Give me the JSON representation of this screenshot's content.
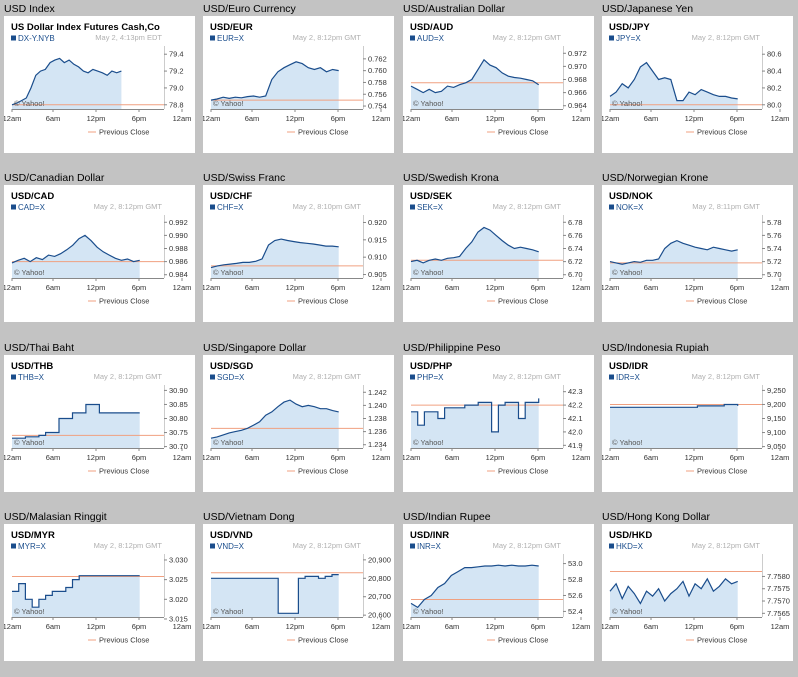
{
  "chart_data": [
    {
      "title": "USD Index",
      "heading": "US Dollar Index Futures Cash,Co",
      "symbol": "DX-Y.NYB",
      "time": "May 2, 4:13pm EDT",
      "ylim": [
        78.75,
        79.45
      ],
      "ticks": [
        "79.4",
        "79.2",
        "79.0",
        "78.8"
      ],
      "tickvals": [
        79.4,
        79.2,
        79.0,
        78.8
      ],
      "prev": 78.8,
      "end": 0.72,
      "values": [
        78.8,
        78.82,
        78.85,
        78.88,
        79.0,
        79.15,
        79.2,
        79.22,
        79.3,
        79.33,
        79.35,
        79.3,
        79.33,
        79.28,
        79.25,
        79.2,
        79.18,
        79.22,
        79.2,
        79.18,
        79.15,
        79.2,
        79.18,
        79.2
      ]
    },
    {
      "title": "USD/Euro Currency",
      "heading": "USD/EUR",
      "symbol": "EUR=X",
      "time": "May 2, 8:12pm GMT",
      "ylim": [
        0.7535,
        0.7635
      ],
      "ticks": [
        "0.762",
        "0.760",
        "0.758",
        "0.756",
        "0.754"
      ],
      "tickvals": [
        0.762,
        0.76,
        0.758,
        0.756,
        0.754
      ],
      "prev": 0.755,
      "end": 0.84,
      "values": [
        0.755,
        0.7552,
        0.7555,
        0.7553,
        0.7555,
        0.7554,
        0.7556,
        0.7557,
        0.7555,
        0.7557,
        0.7585,
        0.7598,
        0.7605,
        0.761,
        0.7615,
        0.7612,
        0.7605,
        0.7602,
        0.7605,
        0.7598,
        0.7602,
        0.76
      ]
    },
    {
      "title": "USD/Australian Dollar",
      "heading": "USD/AUD",
      "symbol": "AUD=X",
      "time": "May 2, 8:12pm GMT",
      "ylim": [
        0.9635,
        0.9725
      ],
      "ticks": [
        "0.972",
        "0.970",
        "0.968",
        "0.966",
        "0.964"
      ],
      "tickvals": [
        0.972,
        0.97,
        0.968,
        0.966,
        0.964
      ],
      "prev": 0.9675,
      "end": 0.84,
      "values": [
        0.967,
        0.9665,
        0.966,
        0.9665,
        0.966,
        0.9662,
        0.967,
        0.9668,
        0.9672,
        0.9675,
        0.968,
        0.9695,
        0.971,
        0.9702,
        0.9698,
        0.969,
        0.9685,
        0.9683,
        0.9682,
        0.968,
        0.9678,
        0.9672
      ]
    },
    {
      "title": "USD/Japanese Yen",
      "heading": "USD/JPY",
      "symbol": "JPY=X",
      "time": "May 2, 8:12pm GMT",
      "ylim": [
        79.95,
        80.65
      ],
      "ticks": [
        "80.6",
        "80.4",
        "80.2",
        "80.0"
      ],
      "tickvals": [
        80.6,
        80.4,
        80.2,
        80.0
      ],
      "prev": 80.0,
      "end": 0.84,
      "values": [
        80.1,
        80.15,
        80.25,
        80.2,
        80.3,
        80.45,
        80.5,
        80.4,
        80.3,
        80.32,
        80.3,
        80.05,
        80.05,
        80.15,
        80.12,
        80.18,
        80.15,
        80.12,
        80.1,
        80.1,
        80.08,
        80.07
      ]
    },
    {
      "title": "USD/Canadian Dollar",
      "heading": "USD/CAD",
      "symbol": "CAD=X",
      "time": "May 2, 8:12pm GMT",
      "ylim": [
        0.9835,
        0.9925
      ],
      "ticks": [
        "0.992",
        "0.990",
        "0.988",
        "0.986",
        "0.984"
      ],
      "tickvals": [
        0.992,
        0.99,
        0.988,
        0.986,
        0.984
      ],
      "prev": 0.986,
      "end": 0.84,
      "values": [
        0.9858,
        0.9862,
        0.9865,
        0.986,
        0.9866,
        0.9863,
        0.987,
        0.9868,
        0.9872,
        0.9878,
        0.9885,
        0.9895,
        0.99,
        0.9892,
        0.9882,
        0.9875,
        0.987,
        0.9865,
        0.9862,
        0.9864,
        0.986,
        0.9862
      ]
    },
    {
      "title": "USD/Swiss Franc",
      "heading": "USD/CHF",
      "symbol": "CHF=X",
      "time": "May 2, 8:10pm GMT",
      "ylim": [
        0.904,
        0.921
      ],
      "ticks": [
        "0.920",
        "0.915",
        "0.910",
        "0.905"
      ],
      "tickvals": [
        0.92,
        0.915,
        0.91,
        0.905
      ],
      "prev": 0.9075,
      "end": 0.84,
      "values": [
        0.907,
        0.9075,
        0.9078,
        0.908,
        0.9082,
        0.9085,
        0.9085,
        0.9088,
        0.9095,
        0.9135,
        0.9148,
        0.9152,
        0.9148,
        0.9145,
        0.9142,
        0.914,
        0.9138,
        0.9135,
        0.9132,
        0.9132,
        0.913
      ]
    },
    {
      "title": "USD/Swedish Krona",
      "heading": "USD/SEK",
      "symbol": "SEK=X",
      "time": "May 2, 8:12pm GMT",
      "ylim": [
        6.695,
        6.785
      ],
      "ticks": [
        "6.78",
        "6.76",
        "6.74",
        "6.72",
        "6.70"
      ],
      "tickvals": [
        6.78,
        6.76,
        6.74,
        6.72,
        6.7
      ],
      "prev": 6.722,
      "end": 0.84,
      "values": [
        6.72,
        6.722,
        6.718,
        6.722,
        6.724,
        6.722,
        6.725,
        6.726,
        6.728,
        6.74,
        6.75,
        6.765,
        6.772,
        6.768,
        6.76,
        6.752,
        6.745,
        6.74,
        6.742,
        6.74,
        6.738,
        6.735
      ]
    },
    {
      "title": "USD/Norwegian Krone",
      "heading": "USD/NOK",
      "symbol": "NOK=X",
      "time": "May 2, 8:11pm GMT",
      "ylim": [
        5.695,
        5.785
      ],
      "ticks": [
        "5.78",
        "5.76",
        "5.74",
        "5.72",
        "5.70"
      ],
      "tickvals": [
        5.78,
        5.76,
        5.74,
        5.72,
        5.7
      ],
      "prev": 5.718,
      "end": 0.84,
      "values": [
        5.72,
        5.718,
        5.716,
        5.718,
        5.72,
        5.719,
        5.722,
        5.722,
        5.724,
        5.74,
        5.748,
        5.752,
        5.748,
        5.745,
        5.742,
        5.74,
        5.738,
        5.742,
        5.74,
        5.738,
        5.736,
        5.738
      ]
    },
    {
      "title": "USD/Thai Baht",
      "heading": "USD/THB",
      "symbol": "THB=X",
      "time": "May 2, 8:12pm GMT",
      "ylim": [
        30.695,
        30.905
      ],
      "ticks": [
        "30.90",
        "30.85",
        "30.80",
        "30.75",
        "30.70"
      ],
      "tickvals": [
        30.9,
        30.85,
        30.8,
        30.75,
        30.7
      ],
      "prev": 30.74,
      "end": 0.84,
      "step": true,
      "values": [
        30.73,
        30.73,
        30.735,
        30.735,
        30.74,
        30.75,
        30.75,
        30.8,
        30.8,
        30.82,
        30.82,
        30.85,
        30.85,
        30.82,
        30.82,
        30.82,
        30.82,
        30.82,
        30.82,
        30.82
      ]
    },
    {
      "title": "USD/Singapore Dollar",
      "heading": "USD/SGD",
      "symbol": "SGD=X",
      "time": "May 2, 8:12pm GMT",
      "ylim": [
        1.2335,
        1.2425
      ],
      "ticks": [
        "1.242",
        "1.240",
        "1.238",
        "1.236",
        "1.234"
      ],
      "tickvals": [
        1.242,
        1.24,
        1.238,
        1.236,
        1.234
      ],
      "prev": 1.2365,
      "end": 0.84,
      "values": [
        1.235,
        1.2352,
        1.2355,
        1.2358,
        1.236,
        1.2362,
        1.2365,
        1.237,
        1.2375,
        1.2385,
        1.239,
        1.2398,
        1.2405,
        1.2408,
        1.2402,
        1.2398,
        1.24,
        1.2398,
        1.2395,
        1.2395,
        1.2392,
        1.239
      ]
    },
    {
      "title": "USD/Philippine Peso",
      "heading": "USD/PHP",
      "symbol": "PHP=X",
      "time": "May 2, 8:12pm GMT",
      "ylim": [
        41.88,
        42.32
      ],
      "ticks": [
        "42.3",
        "42.2",
        "42.1",
        "42.0",
        "41.9"
      ],
      "tickvals": [
        42.3,
        42.2,
        42.1,
        42.0,
        41.9
      ],
      "prev": 42.2,
      "end": 0.84,
      "step": true,
      "values": [
        42.15,
        42.05,
        42.15,
        42.15,
        42.1,
        42.18,
        42.18,
        42.18,
        42.2,
        42.2,
        42.22,
        42.22,
        42.0,
        42.2,
        42.22,
        42.22,
        42.1,
        42.22,
        42.22,
        42.25
      ]
    },
    {
      "title": "USD/Indonesia Rupiah",
      "heading": "USD/IDR",
      "symbol": "IDR=X",
      "time": "May 2, 8:12pm GMT",
      "ylim": [
        9045,
        9255
      ],
      "ticks": [
        "9,250",
        "9,200",
        "9,150",
        "9,100",
        "9,050"
      ],
      "tickvals": [
        9250,
        9200,
        9150,
        9100,
        9050
      ],
      "prev": 9200,
      "end": 0.84,
      "step": true,
      "values": [
        9190,
        9190,
        9190,
        9190,
        9190,
        9190,
        9190,
        9190,
        9190,
        9190,
        9190,
        9190,
        9190,
        9195,
        9195,
        9195,
        9195,
        9200,
        9200,
        9195
      ]
    },
    {
      "title": "USD/Malasian Ringgit",
      "heading": "USD/MYR",
      "symbol": "MYR=X",
      "time": "May 2, 8:12pm GMT",
      "ylim": [
        3.0155,
        3.0305
      ],
      "ticks": [
        "3.030",
        "3.025",
        "3.020",
        "3.015"
      ],
      "tickvals": [
        3.03,
        3.025,
        3.02,
        3.015
      ],
      "prev": 3.0258,
      "end": 0.84,
      "step": true,
      "values": [
        3.022,
        3.024,
        3.02,
        3.018,
        3.02,
        3.021,
        3.022,
        3.022,
        3.023,
        3.025,
        3.026,
        3.026,
        3.026,
        3.026,
        3.026,
        3.026,
        3.026,
        3.026,
        3.026,
        3.026
      ]
    },
    {
      "title": "USD/Vietnam Dong",
      "heading": "USD/VND",
      "symbol": "VND=X",
      "time": "May 2, 8:12pm GMT",
      "ylim": [
        20590,
        20910
      ],
      "ticks": [
        "20,900",
        "20,800",
        "20,700",
        "20,600"
      ],
      "tickvals": [
        20900,
        20800,
        20700,
        20600
      ],
      "prev": 20830,
      "end": 0.84,
      "step": true,
      "values": [
        20800,
        20800,
        20800,
        20800,
        20800,
        20800,
        20800,
        20800,
        20800,
        20800,
        20610,
        20610,
        20610,
        20800,
        20810,
        20810,
        20800,
        20810,
        20820,
        20820
      ]
    },
    {
      "title": "USD/Indian Rupee",
      "heading": "USD/INR",
      "symbol": "INR=X",
      "time": "May 2, 8:12pm GMT",
      "ylim": [
        52.33,
        53.07
      ],
      "ticks": [
        "53.0",
        "52.8",
        "52.6",
        "52.4"
      ],
      "tickvals": [
        53.0,
        52.8,
        52.6,
        52.4
      ],
      "prev": 52.55,
      "end": 0.84,
      "values": [
        52.5,
        52.45,
        52.55,
        52.6,
        52.7,
        52.75,
        52.85,
        52.9,
        52.95,
        52.95,
        52.96,
        52.97,
        52.97,
        52.98,
        52.97,
        52.98,
        52.97,
        52.97,
        52.98,
        52.97
      ]
    },
    {
      "title": "USD/Hong Kong Dollar",
      "heading": "USD/HKD",
      "symbol": "HKD=X",
      "time": "May 2, 8:12pm GMT",
      "ylim": [
        7.75635,
        7.75875
      ],
      "ticks": [
        "7.7580",
        "7.7575",
        "7.7570",
        "7.7565"
      ],
      "tickvals": [
        7.758,
        7.7575,
        7.757,
        7.7565
      ],
      "prev": 7.7582,
      "end": 0.84,
      "values": [
        7.7574,
        7.7577,
        7.7571,
        7.7576,
        7.7573,
        7.7569,
        7.7574,
        7.7572,
        7.7575,
        7.757,
        7.7573,
        7.7575,
        7.7578,
        7.7572,
        7.7577,
        7.7575,
        7.7579,
        7.7574,
        7.7576,
        7.7579,
        7.7577,
        7.7578
      ]
    }
  ],
  "common": {
    "xticks": [
      "12am",
      "6am",
      "12pm",
      "6pm",
      "12am"
    ],
    "legend": "Previous Close",
    "watermark": "© Yahoo!"
  },
  "colors": {
    "line": "#1a4d8c",
    "fill": "#d4e5f4",
    "prev": "#f0a080",
    "heading": "#000000",
    "symbol": "#1a4d8c",
    "time": "#b0b0b0"
  }
}
